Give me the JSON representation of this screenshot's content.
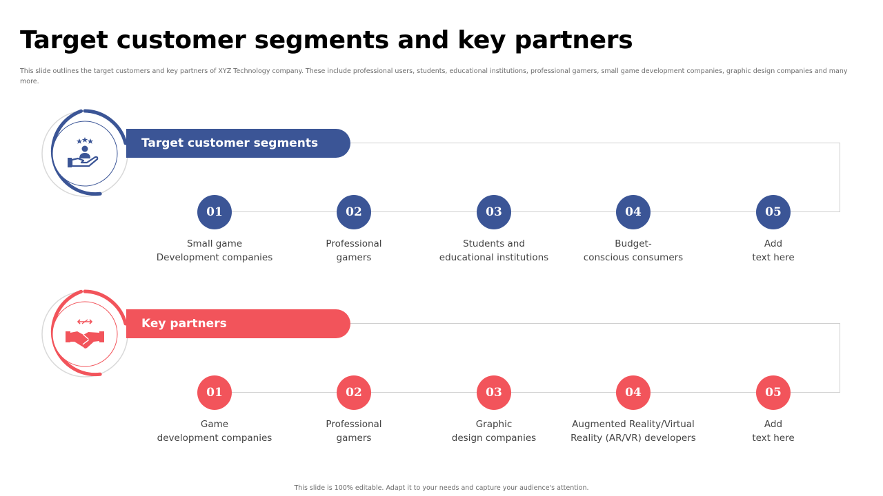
{
  "title": "Target customer segments and key partners",
  "subtitle": "This slide outlines the target customers and key partners of XYZ Technology company. These include professional users, students, educational institutions, professional gamers, small game development companies, graphic design companies and many more.",
  "footer": "This slide is 100% editable. Adapt it to your needs and capture your audience's attention.",
  "colors": {
    "blue": "#3b5596",
    "red": "#f2545b",
    "line": "#cfcfcf"
  },
  "sections": [
    {
      "heading": "Target customer segments",
      "icon": "customer-care-hand-icon",
      "steps": [
        {
          "num": "01",
          "line1": "Small game",
          "line2": "Development companies"
        },
        {
          "num": "02",
          "line1": "Professional",
          "line2": "gamers"
        },
        {
          "num": "03",
          "line1": "Students and",
          "line2": "educational institutions"
        },
        {
          "num": "04",
          "line1": "Budget-",
          "line2": "conscious consumers"
        },
        {
          "num": "05",
          "line1": "Add",
          "line2": "text here"
        }
      ]
    },
    {
      "heading": "Key partners",
      "icon": "handshake-icon",
      "steps": [
        {
          "num": "01",
          "line1": "Game",
          "line2": "development companies"
        },
        {
          "num": "02",
          "line1": "Professional",
          "line2": "gamers"
        },
        {
          "num": "03",
          "line1": "Graphic",
          "line2": "design companies"
        },
        {
          "num": "04",
          "line1": "Augmented Reality/Virtual",
          "line2": "Reality (AR/VR) developers"
        },
        {
          "num": "05",
          "line1": "Add",
          "line2": "text here"
        }
      ]
    }
  ]
}
